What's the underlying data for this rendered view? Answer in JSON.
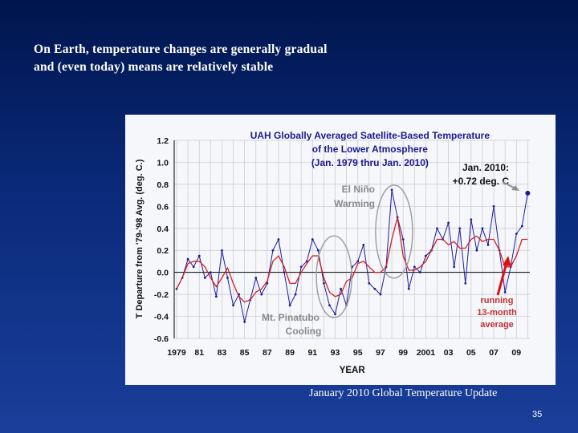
{
  "slide": {
    "title_lines": [
      "On Earth, temperature changes are generally gradual",
      "and (even today) means are relatively stable"
    ],
    "caption": "January 2010 Global Temperature Update",
    "page_number": "35"
  },
  "chart_data": {
    "type": "line",
    "title_lines": [
      "UAH Globally Averaged Satellite-Based Temperature",
      "of the Lower Atmosphere",
      "(Jan. 1979  thru Jan. 2010)"
    ],
    "xlabel": "YEAR",
    "ylabel": "T Departure from '79-'98 Avg. (deg. C.)",
    "xlim": [
      1979,
      2010.4
    ],
    "ylim": [
      -0.6,
      1.2
    ],
    "yticks": [
      1.2,
      1.0,
      0.8,
      0.6,
      0.4,
      0.2,
      0.0,
      -0.2,
      -0.4,
      -0.6
    ],
    "ytick_labels": [
      "1.2",
      "1.0",
      "0.8",
      "0.6",
      "0.4",
      "0.2",
      "0.0",
      "-0.2",
      "-0.4",
      "-0.6"
    ],
    "xticks": [
      1979,
      1981,
      1983,
      1985,
      1987,
      1989,
      1991,
      1993,
      1995,
      1997,
      1999,
      2001,
      2003,
      2005,
      2007,
      2009
    ],
    "xtick_labels": [
      "1979",
      "81",
      "83",
      "85",
      "87",
      "89",
      "91",
      "93",
      "95",
      "97",
      "99",
      "2001",
      "03",
      "05",
      "07",
      "09"
    ],
    "grid": true,
    "colors": {
      "monthly": "#1c1c9c",
      "running": "#d42020",
      "title": "#1a1a8c",
      "annotation_gray": "#8a8a8a",
      "arrow": "#e01010"
    },
    "series": [
      {
        "x": [
          1979,
          1979.5,
          1980,
          1980.5,
          1981,
          1981.5,
          1982,
          1982.5,
          1983,
          1983.5,
          1984,
          1984.5,
          1985,
          1985.5,
          1986,
          1986.5,
          1987,
          1987.5,
          1988,
          1988.5,
          1989,
          1989.5,
          1990,
          1990.5,
          1991,
          1991.5,
          1992,
          1992.5,
          1993,
          1993.5,
          1994,
          1994.5,
          1995,
          1995.5,
          1996,
          1996.5,
          1997,
          1997.5,
          1998,
          1998.5,
          1999,
          1999.5,
          2000,
          2000.5,
          2001,
          2001.5,
          2002,
          2002.5,
          2003,
          2003.5,
          2004,
          2004.5,
          2005,
          2005.5,
          2006,
          2006.5,
          2007,
          2007.5,
          2008,
          2008.5,
          2009,
          2009.5,
          2010
        ],
        "values": [
          -0.15,
          -0.05,
          0.12,
          0.05,
          0.15,
          -0.05,
          0.0,
          -0.22,
          0.2,
          -0.05,
          -0.3,
          -0.2,
          -0.45,
          -0.25,
          -0.05,
          -0.2,
          -0.1,
          0.2,
          0.3,
          0.0,
          -0.3,
          -0.2,
          0.05,
          0.1,
          0.3,
          0.2,
          -0.1,
          -0.3,
          -0.38,
          -0.15,
          -0.3,
          0.05,
          0.1,
          0.25,
          -0.1,
          -0.15,
          -0.2,
          0.05,
          0.75,
          0.5,
          0.3,
          -0.15,
          0.05,
          0.0,
          0.15,
          0.2,
          0.4,
          0.3,
          0.45,
          0.05,
          0.4,
          -0.1,
          0.48,
          0.2,
          0.4,
          0.25,
          0.6,
          0.2,
          -0.18,
          0.05,
          0.35,
          0.42,
          0.72
        ]
      },
      {
        "name": "running 13-month average",
        "x": [
          1979,
          1979.5,
          1980,
          1980.5,
          1981,
          1981.5,
          1982,
          1982.5,
          1983,
          1983.5,
          1984,
          1984.5,
          1985,
          1985.5,
          1986,
          1986.5,
          1987,
          1987.5,
          1988,
          1988.5,
          1989,
          1989.5,
          1990,
          1990.5,
          1991,
          1991.5,
          1992,
          1992.5,
          1993,
          1993.5,
          1994,
          1994.5,
          1995,
          1995.5,
          1996,
          1996.5,
          1997,
          1997.5,
          1998,
          1998.5,
          1999,
          1999.5,
          2000,
          2000.5,
          2001,
          2001.5,
          2002,
          2002.5,
          2003,
          2003.5,
          2004,
          2004.5,
          2005,
          2005.5,
          2006,
          2006.5,
          2007,
          2007.5,
          2008,
          2008.5,
          2009,
          2009.5,
          2010
        ],
        "values": [
          -0.15,
          -0.05,
          0.08,
          0.1,
          0.1,
          0.05,
          -0.05,
          -0.13,
          -0.05,
          0.04,
          -0.1,
          -0.22,
          -0.27,
          -0.25,
          -0.18,
          -0.15,
          -0.08,
          0.1,
          0.15,
          0.05,
          -0.1,
          -0.1,
          0.0,
          0.08,
          0.15,
          0.15,
          -0.05,
          -0.18,
          -0.22,
          -0.2,
          -0.08,
          -0.05,
          0.08,
          0.1,
          0.05,
          0.0,
          0.0,
          0.05,
          0.3,
          0.5,
          0.15,
          0.02,
          0.02,
          0.05,
          0.1,
          0.2,
          0.3,
          0.3,
          0.25,
          0.28,
          0.22,
          0.22,
          0.3,
          0.33,
          0.28,
          0.3,
          0.3,
          0.2,
          0.05,
          0.05,
          0.15,
          0.3,
          0.3
        ]
      }
    ],
    "annotations": {
      "latest_line1": "Jan. 2010:",
      "latest_line2": "+0.72 deg. C",
      "elnino_line1": "El Niño",
      "elnino_line2": "Warming",
      "pinatubo_line1": "Mt. Pinatubo",
      "pinatubo_line2": "Cooling",
      "running_line1": "running",
      "running_line2": "13-month",
      "running_line3": "average"
    }
  }
}
